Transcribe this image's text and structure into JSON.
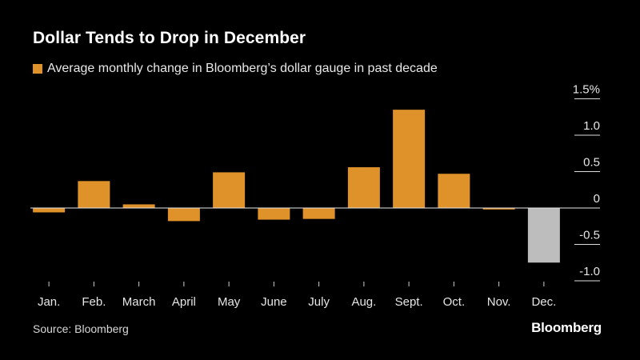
{
  "title": "Dollar Tends to Drop in December",
  "legend_label": "Average monthly change in Bloomberg’s dollar gauge in past decade",
  "source": "Source: Bloomberg",
  "brand": "Bloomberg",
  "colors": {
    "positive": "#e0922a",
    "december": "#bdbdbd",
    "axis": "#dddddd",
    "background": "#000000"
  },
  "chart_data": {
    "type": "bar",
    "title": "Dollar Tends to Drop in December",
    "xlabel": "",
    "ylabel": "",
    "categories": [
      "Jan.",
      "Feb.",
      "March",
      "April",
      "May",
      "June",
      "July",
      "Aug.",
      "Sept.",
      "Oct.",
      "Nov.",
      "Dec."
    ],
    "series": [
      {
        "name": "Average monthly change in Bloomberg’s dollar gauge in past decade",
        "values": [
          -0.06,
          0.37,
          0.05,
          -0.18,
          0.49,
          -0.16,
          -0.15,
          0.56,
          1.35,
          0.47,
          -0.02,
          -0.75
        ]
      }
    ],
    "highlight_category": "Dec.",
    "y_ticks": [
      {
        "value": 1.5,
        "label": "1.5%"
      },
      {
        "value": 1.0,
        "label": "1.0"
      },
      {
        "value": 0.5,
        "label": "0.5"
      },
      {
        "value": 0,
        "label": "0"
      },
      {
        "value": -0.5,
        "label": "-0.5"
      },
      {
        "value": -1.0,
        "label": "-1.0"
      }
    ],
    "ylim": [
      -1.0,
      1.5
    ],
    "y_axis_side": "right",
    "grid": false,
    "legend_position": "top-left"
  }
}
